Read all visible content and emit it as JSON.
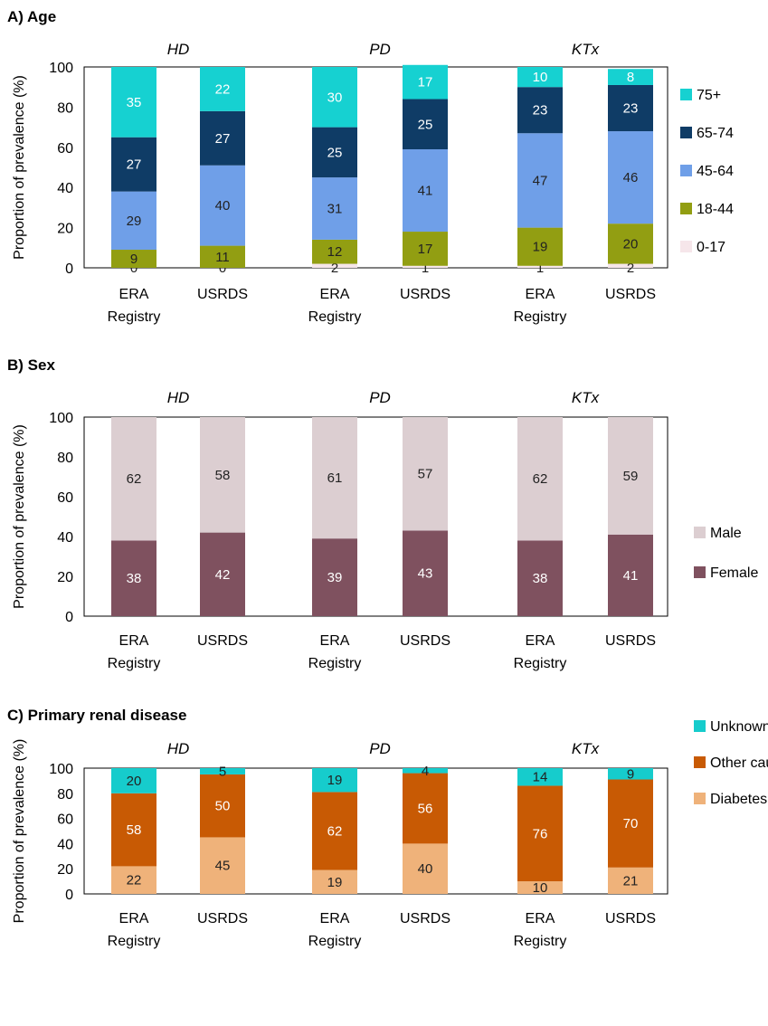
{
  "chart_data": [
    {
      "type": "bar",
      "stacked": true,
      "title": "A) Age",
      "ylabel": "Proportion of prevalence (%)",
      "ylim": [
        0,
        100
      ],
      "yticks": [
        0,
        20,
        40,
        60,
        80,
        100
      ],
      "groups": [
        "HD",
        "PD",
        "KTx"
      ],
      "categories": [
        "ERA Registry",
        "USRDS",
        "ERA Registry",
        "USRDS",
        "ERA Registry",
        "USRDS"
      ],
      "series": [
        {
          "name": "0-17",
          "color": "#f6e6ea",
          "label_color": "#222222",
          "values": [
            0,
            0,
            2,
            1,
            1,
            2
          ]
        },
        {
          "name": "18-44",
          "color": "#929e12",
          "label_color": "#222222",
          "values": [
            9,
            11,
            12,
            17,
            19,
            20
          ]
        },
        {
          "name": "45-64",
          "color": "#6f9fe8",
          "label_color": "#222222",
          "values": [
            29,
            40,
            31,
            41,
            47,
            46
          ]
        },
        {
          "name": "65-74",
          "color": "#0f3c66",
          "label_color": "#ffffff",
          "values": [
            27,
            27,
            25,
            25,
            23,
            23
          ]
        },
        {
          "name": "75+",
          "color": "#16d1d1",
          "label_color": "#ffffff",
          "values": [
            35,
            22,
            30,
            17,
            10,
            8
          ]
        }
      ],
      "legend": "right"
    },
    {
      "type": "bar",
      "stacked": true,
      "title": "B) Sex",
      "ylabel": "Proportion of prevalence (%)",
      "ylim": [
        0,
        100
      ],
      "yticks": [
        0,
        20,
        40,
        60,
        80,
        100
      ],
      "groups": [
        "HD",
        "PD",
        "KTx"
      ],
      "categories": [
        "ERA Registry",
        "USRDS",
        "ERA Registry",
        "USRDS",
        "ERA Registry",
        "USRDS"
      ],
      "series": [
        {
          "name": "Female",
          "color": "#7f515f",
          "label_color": "#ffffff",
          "values": [
            38,
            42,
            39,
            43,
            38,
            41
          ]
        },
        {
          "name": "Male",
          "color": "#dcced1",
          "label_color": "#222222",
          "values": [
            62,
            58,
            61,
            57,
            62,
            59
          ]
        }
      ],
      "legend": "right"
    },
    {
      "type": "bar",
      "stacked": true,
      "title": "C) Primary renal disease",
      "ylabel": "Proportion of prevalence (%)",
      "ylim": [
        0,
        100
      ],
      "yticks": [
        0,
        20,
        40,
        60,
        80,
        100
      ],
      "groups": [
        "HD",
        "PD",
        "KTx"
      ],
      "categories": [
        "ERA Registry",
        "USRDS",
        "ERA Registry",
        "USRDS",
        "ERA Registry",
        "USRDS"
      ],
      "series": [
        {
          "name": "Diabetes",
          "color": "#efb27a",
          "label_color": "#222222",
          "values": [
            22,
            45,
            19,
            40,
            10,
            21
          ]
        },
        {
          "name": "Other causes",
          "color": "#c85a04",
          "label_color": "#ffffff",
          "values": [
            58,
            50,
            62,
            56,
            76,
            70
          ]
        },
        {
          "name": "Unknown",
          "color": "#16cccc",
          "label_color": "#222222",
          "values": [
            20,
            5,
            19,
            4,
            14,
            9
          ]
        }
      ],
      "legend": "right"
    }
  ]
}
